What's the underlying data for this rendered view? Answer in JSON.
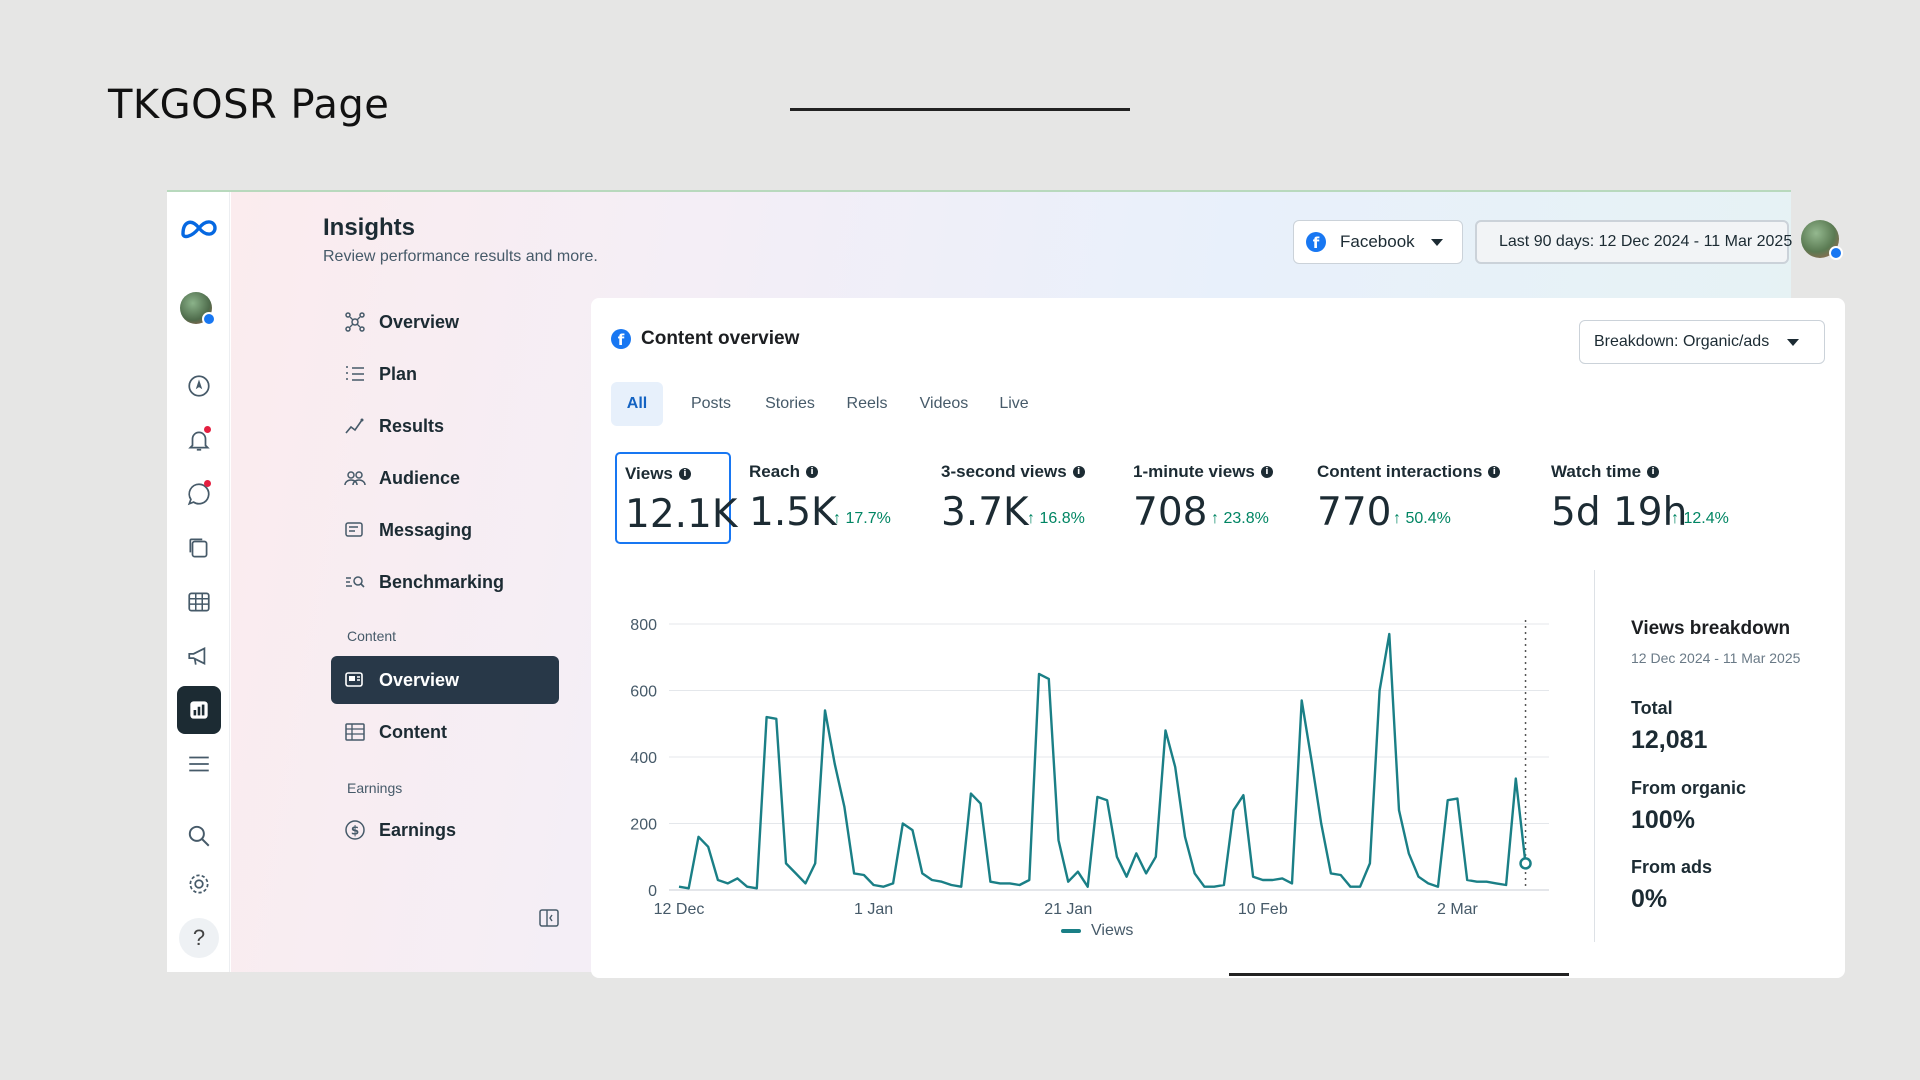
{
  "slide": {
    "title": "TKGOSR  Page"
  },
  "header": {
    "title": "Insights",
    "subtitle": "Review performance results and more.",
    "platform_label": "Facebook",
    "date_range": "Last 90 days: 12 Dec 2024 - 11 Mar 2025"
  },
  "nav": {
    "items": [
      {
        "label": "Overview",
        "icon": "overview-icon"
      },
      {
        "label": "Plan",
        "icon": "plan-icon"
      },
      {
        "label": "Results",
        "icon": "results-icon"
      },
      {
        "label": "Audience",
        "icon": "audience-icon"
      },
      {
        "label": "Messaging",
        "icon": "messaging-icon"
      },
      {
        "label": "Benchmarking",
        "icon": "benchmarking-icon"
      }
    ],
    "content_section": "Content",
    "content_items": [
      {
        "label": "Overview",
        "icon": "content-overview-icon",
        "active": true
      },
      {
        "label": "Content",
        "icon": "table-icon"
      }
    ],
    "earnings_section": "Earnings",
    "earnings_items": [
      {
        "label": "Earnings",
        "icon": "dollar-icon"
      }
    ]
  },
  "panel": {
    "title": "Content overview",
    "breakdown": "Breakdown: Organic/ads",
    "tabs": [
      "All",
      "Posts",
      "Stories",
      "Reels",
      "Videos",
      "Live"
    ],
    "active_tab": "All",
    "metrics": [
      {
        "label": "Views",
        "value": "12.1K",
        "change": ""
      },
      {
        "label": "Reach",
        "value": "1.5K",
        "change": "17.7%"
      },
      {
        "label": "3-second views",
        "value": "3.7K",
        "change": "16.8%"
      },
      {
        "label": "1-minute views",
        "value": "708",
        "change": "23.8%"
      },
      {
        "label": "Content interactions",
        "value": "770",
        "change": "50.4%"
      },
      {
        "label": "Watch time",
        "value": "5d 19h",
        "change": "12.4%"
      }
    ]
  },
  "views_breakdown": {
    "title": "Views breakdown",
    "range": "12 Dec 2024 - 11 Mar 2025",
    "total_label": "Total",
    "total_value": "12,081",
    "organic_label": "From organic",
    "organic_value": "100%",
    "ads_label": "From ads",
    "ads_value": "0%"
  },
  "chart_data": {
    "type": "line",
    "y_ticks": [
      0,
      200,
      400,
      600,
      800
    ],
    "ylim": [
      0,
      800
    ],
    "x_tick_labels": [
      "12 Dec",
      "1 Jan",
      "21 Jan",
      "10 Feb",
      "2 Mar"
    ],
    "x_tick_days": [
      0,
      20,
      40,
      60,
      80
    ],
    "legend": "Views",
    "color": "#1a7f86",
    "series": [
      {
        "name": "Views",
        "days": [
          0,
          1,
          2,
          3,
          4,
          5,
          6,
          7,
          8,
          9,
          10,
          11,
          12,
          13,
          14,
          15,
          16,
          17,
          18,
          19,
          20,
          21,
          22,
          23,
          24,
          25,
          26,
          27,
          28,
          29,
          30,
          31,
          32,
          33,
          34,
          35,
          36,
          37,
          38,
          39,
          40,
          41,
          42,
          43,
          44,
          45,
          46,
          47,
          48,
          49,
          50,
          51,
          52,
          53,
          54,
          55,
          56,
          57,
          58,
          59,
          60,
          61,
          62,
          63,
          64,
          65,
          66,
          67,
          68,
          69,
          70,
          71,
          72,
          73,
          74,
          75,
          76,
          77,
          78,
          79,
          80,
          81,
          82,
          83,
          84,
          85,
          86,
          87
        ],
        "values": [
          10,
          5,
          160,
          130,
          30,
          20,
          35,
          10,
          5,
          520,
          515,
          80,
          50,
          20,
          80,
          540,
          380,
          250,
          50,
          45,
          15,
          10,
          20,
          200,
          180,
          50,
          30,
          25,
          15,
          10,
          290,
          260,
          25,
          20,
          20,
          15,
          30,
          650,
          635,
          150,
          25,
          55,
          10,
          280,
          270,
          100,
          40,
          110,
          50,
          100,
          480,
          370,
          160,
          50,
          10,
          10,
          15,
          240,
          285,
          40,
          30,
          30,
          35,
          20,
          570,
          390,
          200,
          50,
          45,
          10,
          10,
          80,
          600,
          770,
          240,
          110,
          40,
          20,
          10,
          270,
          275,
          30,
          25,
          25,
          20,
          15,
          335,
          80
        ]
      }
    ]
  }
}
